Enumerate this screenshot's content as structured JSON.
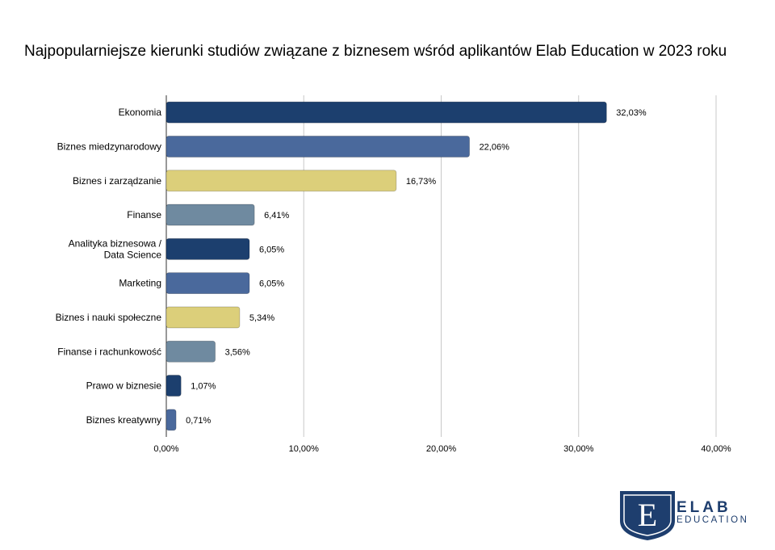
{
  "chart_data": {
    "type": "bar",
    "orientation": "horizontal",
    "title": "Najpopularniejsze kierunki studiów związane z biznesem wśród aplikantów Elab Education w 2023 roku",
    "categories": [
      "Ekonomia",
      "Biznes miedzynarodowy",
      "Biznes i zarządzanie",
      "Finanse",
      "Analityka biznesowa / Data Science",
      "Marketing",
      "Biznes i nauki społeczne",
      "Finanse i rachunkowość",
      "Prawo w biznesie",
      "Biznes kreatywny"
    ],
    "values": [
      32.03,
      22.06,
      16.73,
      6.41,
      6.05,
      6.05,
      5.34,
      3.56,
      1.07,
      0.71
    ],
    "value_labels": [
      "32,03%",
      "22,06%",
      "16,73%",
      "6,41%",
      "6,05%",
      "6,05%",
      "5,34%",
      "3,56%",
      "1,07%",
      "0,71%"
    ],
    "bar_colors": [
      "#1c3f6e",
      "#4a699c",
      "#dccf7a",
      "#6f8aa0",
      "#1c3f6e",
      "#4a699c",
      "#dccf7a",
      "#6f8aa0",
      "#1c3f6e",
      "#4a699c"
    ],
    "xlim": [
      0,
      40
    ],
    "x_ticks": [
      0,
      10,
      20,
      30,
      40
    ],
    "x_tick_labels": [
      "0,00%",
      "10,00%",
      "20,00%",
      "30,00%",
      "40,00%"
    ],
    "grid": true,
    "xlabel": "",
    "ylabel": ""
  },
  "logo": {
    "letter": "E",
    "line1": "ELAB",
    "line2": "EDUCATION",
    "color": "#1e3e6e"
  }
}
